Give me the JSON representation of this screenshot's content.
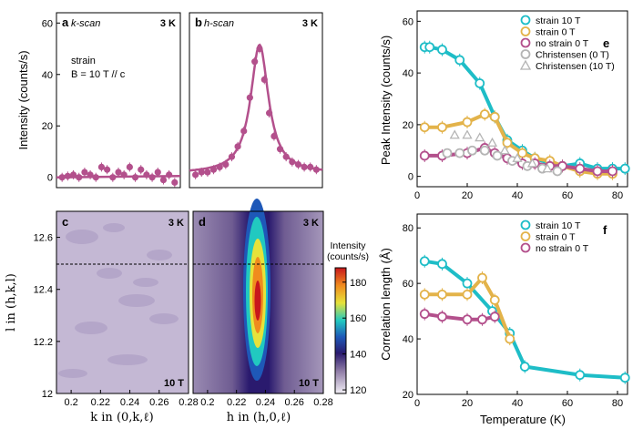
{
  "colors": {
    "strain10": "#1ebdc7",
    "strain0": "#e3b34a",
    "nostrain": "#b3508c",
    "christensen": "#b5b5b5",
    "dash": "#000000"
  },
  "chart_data": [
    {
      "id": "a",
      "type": "scatter",
      "panel": "a",
      "subtitle": "k-scan",
      "temp": "3 K",
      "annotations": [
        "strain",
        "B = 10 T // c"
      ],
      "ylabel": "Intensity (counts/s)",
      "ylim": [
        -4,
        64
      ],
      "yticks": [
        0,
        20,
        40,
        60
      ],
      "xlim": [
        0.18,
        0.29
      ],
      "x": [
        0.185,
        0.19,
        0.195,
        0.2,
        0.205,
        0.21,
        0.215,
        0.22,
        0.225,
        0.23,
        0.235,
        0.24,
        0.245,
        0.25,
        0.255,
        0.26,
        0.265,
        0.27,
        0.275,
        0.28,
        0.285
      ],
      "values": [
        0,
        0.5,
        1,
        0,
        2,
        1,
        0,
        4,
        3,
        0,
        2,
        1,
        4,
        0,
        3,
        1,
        0,
        2,
        -1,
        1,
        -2
      ],
      "fit": [
        [
          0.18,
          0
        ],
        [
          0.29,
          0.5
        ]
      ]
    },
    {
      "id": "b",
      "type": "scatter",
      "panel": "b",
      "subtitle": "h-scan",
      "temp": "3 K",
      "ylim": [
        -4,
        64
      ],
      "xlim": [
        0.18,
        0.29
      ],
      "x": [
        0.185,
        0.19,
        0.195,
        0.2,
        0.205,
        0.21,
        0.215,
        0.22,
        0.225,
        0.23,
        0.234,
        0.238,
        0.242,
        0.246,
        0.25,
        0.255,
        0.26,
        0.265,
        0.27,
        0.275,
        0.28,
        0.285
      ],
      "values": [
        1,
        2,
        2,
        3,
        4,
        5,
        8,
        12,
        18,
        31,
        45,
        50,
        38,
        25,
        16,
        11,
        8,
        6,
        5,
        4,
        4,
        3
      ],
      "fit_center": 0.238,
      "fit_amp": 50,
      "fit_width": 0.009,
      "fit_bg": 1.5
    },
    {
      "id": "c",
      "type": "heatmap",
      "panel": "c",
      "temp": "3 K",
      "field": "10 T",
      "xlabel": "k in (0,k,ℓ)",
      "ylabel": "l in (h,k,l)",
      "xlim": [
        0.19,
        0.28
      ],
      "ylim": [
        12.0,
        12.7
      ],
      "xticks": [
        "0.2",
        "0.22",
        "0.24",
        "0.26",
        "0.28"
      ],
      "yticks": [
        "12",
        "12.2",
        "12.4",
        "12.6"
      ],
      "dashed_line": 12.5,
      "level": 135
    },
    {
      "id": "d",
      "type": "heatmap",
      "panel": "d",
      "temp": "3 K",
      "field": "10 T",
      "xlabel": "h in (h,0,ℓ)",
      "xlim": [
        0.19,
        0.28
      ],
      "ylim": [
        12.0,
        12.7
      ],
      "xticks": [
        "0.2",
        "0.22",
        "0.24",
        "0.26",
        "0.28"
      ],
      "dashed_line": 12.5,
      "peak_h": 0.238,
      "peak_l": 12.3,
      "peak_value": 185,
      "background": 130
    },
    {
      "id": "colorbar",
      "type": "heatmap",
      "title": "Intensity (counts/s)",
      "range": [
        118,
        188
      ],
      "ticks": [
        "120",
        "140",
        "160",
        "180"
      ]
    },
    {
      "id": "e",
      "type": "line",
      "panel": "e",
      "xlabel": "",
      "ylabel": "Peak Intensity (counts/s)",
      "xlim": [
        0,
        84
      ],
      "ylim": [
        -4,
        64
      ],
      "xticks": [
        "0",
        "20",
        "40",
        "60",
        "80"
      ],
      "yticks": [
        "0",
        "20",
        "40",
        "60"
      ],
      "series": [
        {
          "name": "strain 10 T",
          "color_key": "strain10",
          "marker": "circle",
          "x": [
            3,
            5,
            10,
            17,
            25,
            31,
            36,
            42,
            47,
            53,
            58,
            65,
            72,
            78,
            83
          ],
          "y": [
            50,
            50,
            49,
            45,
            36,
            23,
            14,
            10,
            7,
            5,
            4,
            5,
            3,
            3,
            3
          ]
        },
        {
          "name": "strain 0 T",
          "color_key": "strain0",
          "marker": "circle",
          "x": [
            3,
            10,
            20,
            27,
            31,
            36,
            42,
            47,
            53,
            58,
            65,
            72,
            78
          ],
          "y": [
            19,
            19,
            21,
            24,
            23,
            13,
            9,
            7,
            6,
            4,
            2,
            1,
            1
          ]
        },
        {
          "name": "no strain 0 T",
          "color_key": "nostrain",
          "marker": "circle",
          "x": [
            3,
            10,
            20,
            27,
            31,
            36,
            42,
            47,
            53,
            58,
            65,
            72,
            78
          ],
          "y": [
            8,
            8,
            9,
            11,
            9,
            7,
            5,
            5,
            4,
            4,
            3,
            2,
            2
          ]
        },
        {
          "name": "Christensen (0 T)",
          "color_key": "christensen",
          "marker": "circle",
          "x": [
            12,
            17,
            22,
            27,
            32,
            38,
            44,
            50,
            56
          ],
          "y": [
            9,
            9,
            10,
            10,
            8,
            6,
            4,
            3,
            2
          ]
        },
        {
          "name": "Christensen (10 T)",
          "color_key": "christensen",
          "marker": "triangle",
          "x": [
            15,
            20,
            25,
            30,
            35,
            40,
            46,
            52
          ],
          "y": [
            16,
            16,
            15,
            13,
            10,
            7,
            5,
            3
          ]
        }
      ]
    },
    {
      "id": "f",
      "type": "line",
      "panel": "f",
      "xlabel": "Temperature (K)",
      "ylabel": "Correlation length (Å)",
      "xlim": [
        0,
        84
      ],
      "ylim": [
        20,
        85
      ],
      "xticks": [
        "0",
        "20",
        "40",
        "60",
        "80"
      ],
      "yticks": [
        "20",
        "40",
        "60",
        "80"
      ],
      "series": [
        {
          "name": "strain 10 T",
          "color_key": "strain10",
          "marker": "circle",
          "x": [
            3,
            10,
            20,
            30,
            37,
            43,
            65,
            83
          ],
          "y": [
            68,
            67,
            60,
            50,
            42,
            30,
            27,
            26
          ]
        },
        {
          "name": "strain 0 T",
          "color_key": "strain0",
          "marker": "circle",
          "x": [
            3,
            10,
            20,
            26,
            31,
            37
          ],
          "y": [
            56,
            56,
            56,
            62,
            54,
            40
          ]
        },
        {
          "name": "no strain 0 T",
          "color_key": "nostrain",
          "marker": "circle",
          "x": [
            3,
            10,
            20,
            26,
            31
          ],
          "y": [
            49,
            48,
            47,
            47,
            48
          ]
        }
      ]
    }
  ],
  "titles": {
    "k_scan": "k-scan",
    "h_scan": "h-scan"
  }
}
